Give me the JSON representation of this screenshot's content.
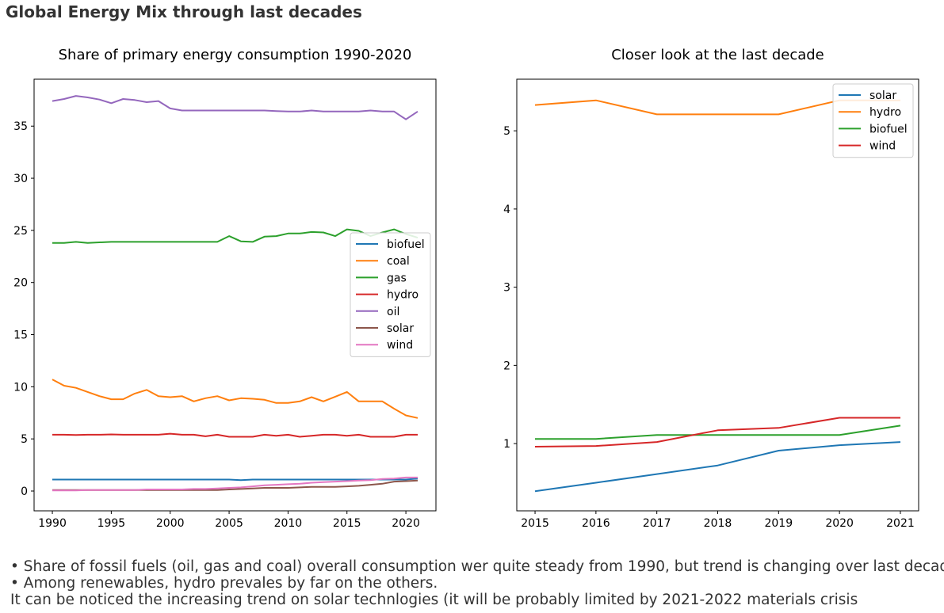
{
  "suptitle": "Global Energy Mix through last decades",
  "notes": [
    "• Share of fossil fuels (oil, gas and coal) overall consumption wer quite steady from 1990, but trend is changing over last decade.",
    "• Among renewables, hydro prevales by far on the others.",
    "It can be noticed the increasing trend on solar technlogies (it will be probably limited by 2021-2022 materials crisis"
  ],
  "chart_data": [
    {
      "type": "line",
      "title": "Share of primary energy consumption 1990-2020",
      "xlabel": "",
      "ylabel": "",
      "xlim": [
        1988.45,
        2022.55
      ],
      "ylim": [
        -1.9,
        39.5
      ],
      "xticks": [
        1990,
        1995,
        2000,
        2005,
        2010,
        2015,
        2020
      ],
      "yticks": [
        0,
        5,
        10,
        15,
        20,
        25,
        30,
        35
      ],
      "grid": false,
      "legend": "center-right",
      "x": [
        1990,
        1991,
        1992,
        1993,
        1994,
        1995,
        1996,
        1997,
        1998,
        1999,
        2000,
        2001,
        2002,
        2003,
        2004,
        2005,
        2006,
        2007,
        2008,
        2009,
        2010,
        2011,
        2012,
        2013,
        2014,
        2015,
        2016,
        2017,
        2018,
        2019,
        2020,
        2021
      ],
      "series": [
        {
          "name": "biofuel",
          "color": "#1f77b4",
          "values": [
            1.1,
            1.1,
            1.1,
            1.1,
            1.1,
            1.1,
            1.1,
            1.1,
            1.1,
            1.1,
            1.1,
            1.1,
            1.1,
            1.1,
            1.1,
            1.1,
            1.05,
            1.1,
            1.1,
            1.1,
            1.1,
            1.1,
            1.1,
            1.1,
            1.1,
            1.1,
            1.1,
            1.1,
            1.1,
            1.1,
            1.1,
            1.2
          ]
        },
        {
          "name": "coal",
          "color": "#ff7f0e",
          "values": [
            10.7,
            10.1,
            9.9,
            9.5,
            9.1,
            8.8,
            8.8,
            9.35,
            9.7,
            9.1,
            9.0,
            9.1,
            8.6,
            8.9,
            9.1,
            8.7,
            8.9,
            8.85,
            8.75,
            8.45,
            8.45,
            8.6,
            9.0,
            8.6,
            9.05,
            9.5,
            8.6,
            8.6,
            8.6,
            7.9,
            7.25,
            7.0
          ]
        },
        {
          "name": "gas",
          "color": "#2ca02c",
          "values": [
            23.8,
            23.8,
            23.9,
            23.8,
            23.85,
            23.9,
            23.9,
            23.9,
            23.9,
            23.9,
            23.9,
            23.9,
            23.9,
            23.9,
            23.9,
            24.45,
            23.95,
            23.9,
            24.4,
            24.45,
            24.7,
            24.7,
            24.85,
            24.8,
            24.45,
            25.1,
            24.95,
            24.45,
            24.8,
            25.1,
            24.65,
            24.3
          ]
        },
        {
          "name": "hydro",
          "color": "#d62728",
          "values": [
            5.4,
            5.4,
            5.38,
            5.4,
            5.4,
            5.43,
            5.4,
            5.4,
            5.4,
            5.4,
            5.5,
            5.4,
            5.4,
            5.25,
            5.4,
            5.2,
            5.2,
            5.2,
            5.4,
            5.3,
            5.4,
            5.2,
            5.3,
            5.4,
            5.4,
            5.3,
            5.4,
            5.2,
            5.2,
            5.2,
            5.4,
            5.4
          ]
        },
        {
          "name": "oil",
          "color": "#9467bd",
          "values": [
            37.4,
            37.6,
            37.9,
            37.75,
            37.55,
            37.2,
            37.6,
            37.5,
            37.3,
            37.4,
            36.7,
            36.5,
            36.5,
            36.5,
            36.5,
            36.5,
            36.5,
            36.5,
            36.5,
            36.45,
            36.4,
            36.4,
            36.5,
            36.4,
            36.4,
            36.4,
            36.4,
            36.5,
            36.4,
            36.4,
            35.65,
            36.4
          ]
        },
        {
          "name": "solar",
          "color": "#8c564b",
          "values": [
            0.1,
            0.1,
            0.1,
            0.1,
            0.1,
            0.1,
            0.1,
            0.1,
            0.1,
            0.1,
            0.1,
            0.1,
            0.1,
            0.1,
            0.1,
            0.15,
            0.2,
            0.25,
            0.3,
            0.3,
            0.3,
            0.35,
            0.4,
            0.4,
            0.4,
            0.45,
            0.5,
            0.6,
            0.7,
            0.9,
            0.95,
            1.0
          ]
        },
        {
          "name": "wind",
          "color": "#e377c2",
          "values": [
            0.05,
            0.05,
            0.05,
            0.1,
            0.1,
            0.1,
            0.1,
            0.1,
            0.15,
            0.15,
            0.15,
            0.15,
            0.2,
            0.2,
            0.25,
            0.3,
            0.35,
            0.45,
            0.55,
            0.6,
            0.65,
            0.7,
            0.8,
            0.85,
            0.9,
            0.95,
            1.0,
            1.05,
            1.15,
            1.2,
            1.3,
            1.3
          ]
        }
      ]
    },
    {
      "type": "line",
      "title": "Closer look at the last decade",
      "xlabel": "",
      "ylabel": "",
      "xlim": [
        2014.7,
        2021.3
      ],
      "ylim": [
        0.14,
        5.66
      ],
      "xticks": [
        2015,
        2016,
        2017,
        2018,
        2019,
        2020,
        2021
      ],
      "yticks": [
        1,
        2,
        3,
        4,
        5
      ],
      "grid": false,
      "legend": "top-right",
      "x": [
        2015,
        2016,
        2017,
        2018,
        2019,
        2020,
        2021
      ],
      "series": [
        {
          "name": "solar",
          "color": "#1f77b4",
          "values": [
            0.39,
            0.5,
            0.61,
            0.72,
            0.91,
            0.98,
            1.02
          ]
        },
        {
          "name": "hydro",
          "color": "#ff7f0e",
          "values": [
            5.33,
            5.39,
            5.21,
            5.21,
            5.21,
            5.39,
            5.39
          ]
        },
        {
          "name": "biofuel",
          "color": "#2ca02c",
          "values": [
            1.06,
            1.06,
            1.11,
            1.11,
            1.11,
            1.11,
            1.23
          ]
        },
        {
          "name": "wind",
          "color": "#d62728",
          "values": [
            0.96,
            0.97,
            1.02,
            1.17,
            1.2,
            1.33,
            1.33
          ]
        }
      ]
    }
  ]
}
